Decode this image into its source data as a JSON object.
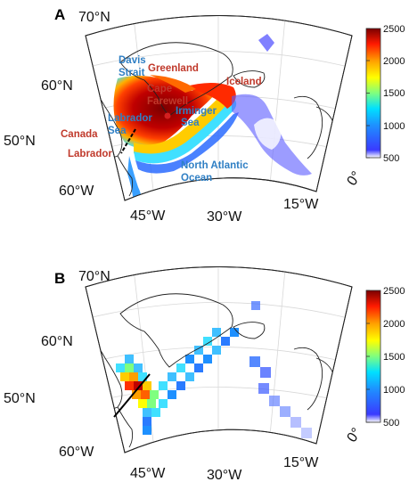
{
  "panels": [
    {
      "letter": "A",
      "lat_labels": [
        "70°N",
        "60°N",
        "50°N"
      ],
      "lon_labels": [
        "60°W",
        "45°W",
        "30°W",
        "15°W",
        "0°"
      ],
      "places": {
        "davis1": "Davis",
        "davis2": "Strait",
        "greenland": "Greenland",
        "iceland": "Iceland",
        "cape1": "Cape",
        "cape2": "Farewell",
        "irminger1": "Irminger",
        "irminger2": "Sea",
        "labsea1": "Labrador",
        "labsea2": "Sea",
        "canada": "Canada",
        "labrador": "Labrador",
        "nao1": "North Atlantic",
        "nao2": "Ocean"
      },
      "colorbar_ticks": [
        "2500",
        "2000",
        "1500",
        "1000",
        "500"
      ]
    },
    {
      "letter": "B",
      "lat_labels": [
        "70°N",
        "60°N",
        "50°N"
      ],
      "lon_labels": [
        "60°W",
        "45°W",
        "30°W",
        "15°W",
        "0°"
      ],
      "colorbar_ticks": [
        "2500",
        "2000",
        "1500",
        "1000",
        "500"
      ]
    }
  ],
  "colormap": [
    "#0000ff",
    "#00bfff",
    "#00ffff",
    "#7fff7f",
    "#ffff00",
    "#ff9f00",
    "#ff0000",
    "#8b0000"
  ],
  "colorbar_range": [
    500,
    2500
  ]
}
